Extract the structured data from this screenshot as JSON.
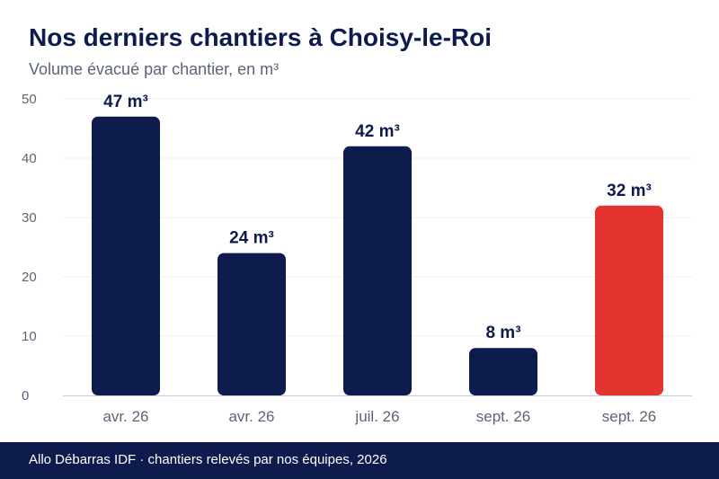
{
  "header": {
    "title": "Nos derniers chantiers à Choisy-le-Roi",
    "subtitle": "Volume évacué par chantier, en m³"
  },
  "footer": {
    "text": "Allo Débarras IDF · chantiers relevés par nos équipes, 2026"
  },
  "colors": {
    "primary": "#0e1b4d",
    "highlight": "#e3342f",
    "grid": "#ececf0",
    "axis_text": "#5a6478"
  },
  "chart_data": {
    "type": "bar",
    "title": "Nos derniers chantiers à Choisy-le-Roi",
    "subtitle": "Volume évacué par chantier, en m³",
    "categories": [
      "avr. 26",
      "avr. 26",
      "juil. 26",
      "sept. 26",
      "sept. 26"
    ],
    "values": [
      47,
      24,
      42,
      8,
      32
    ],
    "data_labels": [
      "47 m³",
      "24 m³",
      "42 m³",
      "8 m³",
      "32 m³"
    ],
    "highlight_index": 4,
    "ylim": [
      0,
      50
    ],
    "yticks": [
      0,
      10,
      20,
      30,
      40,
      50
    ],
    "grid": true,
    "xlabel": "",
    "ylabel": ""
  }
}
